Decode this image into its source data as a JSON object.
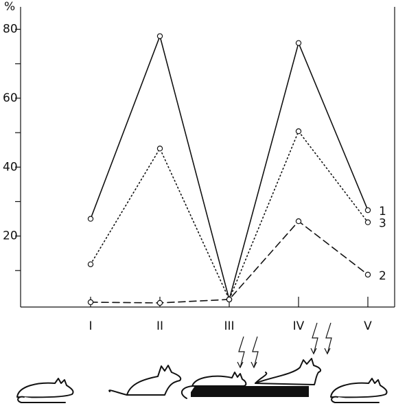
{
  "chart_data": {
    "type": "line",
    "y_label": "%",
    "categories": [
      "I",
      "II",
      "III",
      "IV",
      "V"
    ],
    "series": [
      {
        "name": "1",
        "color": "#111111",
        "dash": "solid",
        "values": [
          25,
          78,
          1.6,
          76,
          27.5
        ]
      },
      {
        "name": "3",
        "color": "#111111",
        "dash": "dotted",
        "values": [
          11.8,
          45.4,
          1.6,
          50.4,
          24
        ]
      },
      {
        "name": "2",
        "color": "#111111",
        "dash": "dashed",
        "values": [
          0.8,
          0.6,
          1.6,
          24.3,
          8.8
        ]
      }
    ],
    "ylim": [
      0,
      86.5
    ],
    "yticks": [
      20,
      40,
      60,
      80
    ],
    "yticks_minor": [
      10,
      30,
      50,
      70
    ],
    "grid": false
  }
}
